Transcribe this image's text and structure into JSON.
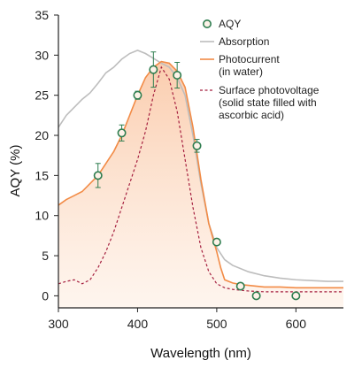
{
  "chart_data": {
    "type": "line",
    "title": "",
    "xlabel": "Wavelength (nm)",
    "ylabel": "AQY (%)",
    "xlim": [
      300,
      660
    ],
    "ylim": [
      -1.5,
      35
    ],
    "x_ticks": [
      300,
      400,
      500,
      600
    ],
    "y_ticks": [
      0,
      5,
      10,
      15,
      20,
      25,
      30,
      35
    ],
    "x_tick_labels": [
      "300",
      "400",
      "500",
      "600"
    ],
    "y_tick_labels": [
      "0",
      "5",
      "10",
      "15",
      "20",
      "25",
      "30",
      "35"
    ],
    "grid": false,
    "legend_position": "top-right",
    "series": [
      {
        "name": "AQY",
        "kind": "scatter",
        "color": "#2e7d4f",
        "x": [
          350,
          380,
          400,
          420,
          450,
          475,
          500,
          530,
          550,
          600
        ],
        "y": [
          15.0,
          20.3,
          25.0,
          28.2,
          27.5,
          18.7,
          6.7,
          1.2,
          0.0,
          0.0
        ],
        "err": [
          1.5,
          1.0,
          0.5,
          2.2,
          1.6,
          0.8,
          0.3,
          0.2,
          0.1,
          0.1
        ]
      },
      {
        "name": "Absorption",
        "kind": "line",
        "color": "#bdbdbd",
        "x": [
          300,
          310,
          320,
          330,
          340,
          350,
          360,
          370,
          380,
          390,
          400,
          410,
          420,
          430,
          440,
          450,
          460,
          470,
          480,
          490,
          500,
          510,
          520,
          540,
          560,
          580,
          600,
          620,
          640,
          660
        ],
        "y": [
          21.0,
          22.5,
          23.5,
          24.5,
          25.3,
          26.5,
          27.8,
          28.5,
          29.5,
          30.2,
          30.6,
          30.2,
          29.6,
          29.0,
          28.5,
          27.2,
          25.0,
          20.0,
          14.0,
          9.0,
          6.0,
          4.5,
          3.8,
          3.0,
          2.5,
          2.2,
          2.0,
          1.9,
          1.8,
          1.8
        ]
      },
      {
        "name": "Photocurrent\n(in water)",
        "kind": "area",
        "color": "#f28b46",
        "x": [
          300,
          310,
          320,
          330,
          340,
          350,
          360,
          370,
          380,
          390,
          400,
          410,
          420,
          430,
          440,
          450,
          460,
          470,
          480,
          490,
          500,
          505,
          510,
          520,
          530,
          540,
          560,
          580,
          600,
          620,
          640,
          660
        ],
        "y": [
          11.3,
          12.0,
          12.5,
          13.0,
          14.0,
          15.0,
          16.5,
          18.0,
          20.0,
          22.5,
          25.0,
          27.2,
          28.5,
          29.2,
          29.0,
          28.0,
          26.0,
          21.0,
          14.5,
          9.0,
          5.5,
          3.5,
          2.0,
          1.6,
          1.4,
          1.3,
          1.1,
          1.1,
          1.0,
          1.0,
          1.0,
          1.0
        ]
      },
      {
        "name": "Surface photovoltage\n(solid state filled with\nascorbic acid)",
        "kind": "line",
        "color": "#a51f3f",
        "dashed": true,
        "x": [
          300,
          310,
          320,
          330,
          340,
          350,
          360,
          370,
          380,
          390,
          400,
          410,
          420,
          430,
          440,
          450,
          460,
          470,
          480,
          490,
          500,
          510,
          520,
          540,
          560,
          580,
          600,
          620,
          640,
          660
        ],
        "y": [
          1.5,
          1.8,
          2.0,
          1.5,
          2.0,
          3.5,
          5.5,
          8.0,
          11.0,
          14.0,
          17.0,
          20.5,
          25.0,
          28.5,
          27.0,
          23.0,
          17.0,
          11.0,
          6.0,
          3.0,
          1.5,
          1.0,
          0.8,
          0.6,
          0.5,
          0.5,
          0.5,
          0.5,
          0.5,
          0.5
        ]
      }
    ]
  }
}
